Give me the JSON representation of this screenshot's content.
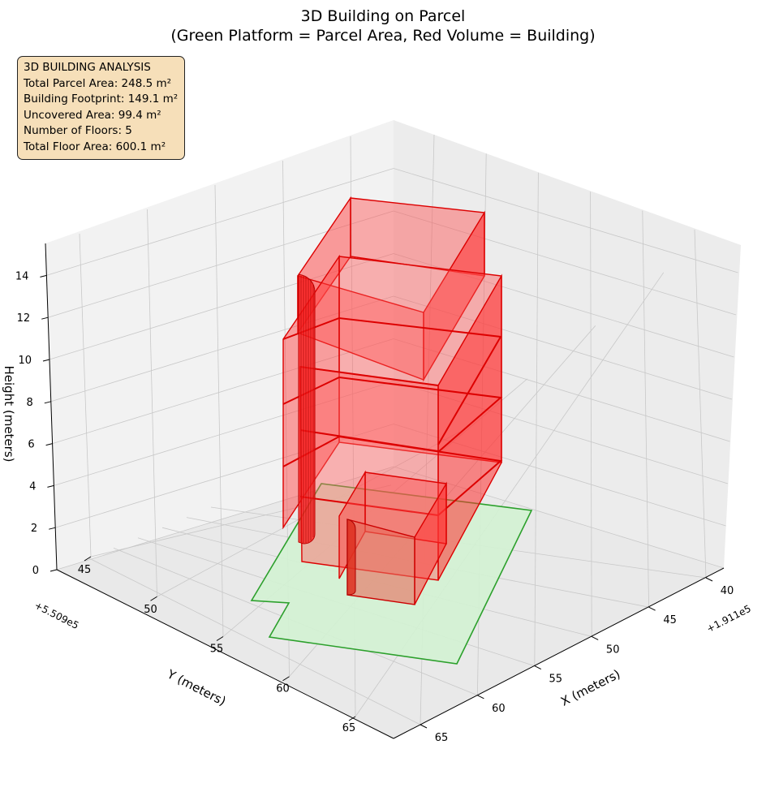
{
  "chart_data": {
    "type": "3d-polygons",
    "title": "3D Building on Parcel",
    "subtitle": "(Green Platform = Parcel Area, Red Volume = Building)",
    "xlabel": "X (meters)",
    "ylabel": "Y (meters)",
    "zlabel": "Height (meters)",
    "x_offset_label": "+1.911e5",
    "y_offset_label": "+5.509e5",
    "x_ticks": [
      "40",
      "45",
      "50",
      "55",
      "60",
      "65"
    ],
    "y_ticks": [
      "45",
      "50",
      "55",
      "60",
      "65"
    ],
    "z_ticks": [
      "0",
      "2",
      "4",
      "6",
      "8",
      "10",
      "12",
      "14"
    ],
    "grid": true,
    "colors": {
      "parcel_fill": "#d3f2d3",
      "parcel_edge": "#2ca02c",
      "building_fill": "#ff5a5a",
      "building_edge": "#e00000",
      "info_box_bg": "#f6dfb9"
    },
    "series": [
      {
        "name": "Green Platform = Parcel Area",
        "role": "parcel"
      },
      {
        "name": "Red Volume = Building",
        "role": "building"
      }
    ]
  },
  "info_box": {
    "header": "3D BUILDING ANALYSIS",
    "lines": [
      "Total Parcel Area: 248.5 m²",
      "Building Footprint: 149.1 m²",
      "Uncovered Area: 99.4 m²",
      "Number of Floors: 5",
      "Total Floor Area: 600.1 m²"
    ]
  }
}
